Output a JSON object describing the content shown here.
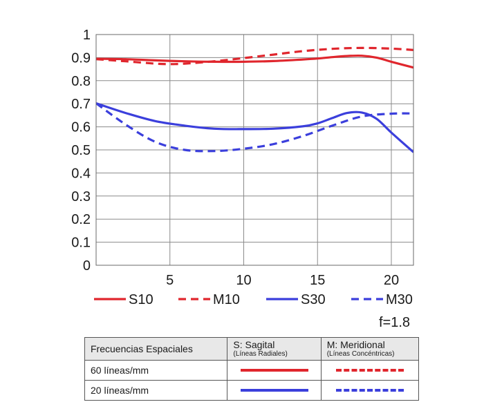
{
  "chart_data": {
    "type": "line",
    "xlabel": "",
    "ylabel": "",
    "xlim": [
      0,
      21.5
    ],
    "ylim": [
      0,
      1
    ],
    "x_ticks": [
      5,
      10,
      15,
      20
    ],
    "y_ticks": [
      "0",
      "0.1",
      "0.2",
      "0.3",
      "0.4",
      "0.5",
      "0.6",
      "0.7",
      "0.8",
      "0.9",
      "1"
    ],
    "grid": true,
    "legend_position": "bottom",
    "series": [
      {
        "name": "S10",
        "color": "#e0262d",
        "style": "solid",
        "x": [
          0,
          2,
          4,
          6,
          8,
          10,
          12,
          14,
          15,
          16,
          17,
          18,
          19,
          20,
          21.5
        ],
        "y": [
          0.895,
          0.893,
          0.888,
          0.884,
          0.882,
          0.882,
          0.885,
          0.892,
          0.896,
          0.902,
          0.907,
          0.908,
          0.9,
          0.882,
          0.857
        ]
      },
      {
        "name": "M10",
        "color": "#e0262d",
        "style": "dashed",
        "x": [
          0,
          2,
          4,
          5,
          6,
          8,
          10,
          12,
          14,
          16,
          18,
          20,
          21.5
        ],
        "y": [
          0.893,
          0.884,
          0.874,
          0.872,
          0.874,
          0.884,
          0.898,
          0.913,
          0.928,
          0.938,
          0.942,
          0.939,
          0.933
        ]
      },
      {
        "name": "S30",
        "color": "#3b3fdc",
        "style": "solid",
        "x": [
          0,
          2,
          4,
          6,
          8,
          10,
          12,
          14,
          15,
          16,
          17,
          18,
          19,
          20,
          21.5
        ],
        "y": [
          0.702,
          0.66,
          0.625,
          0.605,
          0.592,
          0.59,
          0.592,
          0.602,
          0.615,
          0.638,
          0.66,
          0.662,
          0.635,
          0.575,
          0.49
        ]
      },
      {
        "name": "M30",
        "color": "#3b3fdc",
        "style": "dashed",
        "x": [
          0,
          2,
          4,
          6,
          8,
          10,
          12,
          14,
          16,
          18,
          20,
          21.5
        ],
        "y": [
          0.702,
          0.61,
          0.535,
          0.5,
          0.495,
          0.505,
          0.525,
          0.56,
          0.605,
          0.645,
          0.657,
          0.658
        ]
      }
    ]
  },
  "aperture_label": "f=1.8",
  "legend_table": {
    "header": {
      "col1": "Frecuencias Espaciales",
      "col2_main": "S: Sagital",
      "col2_sub": "(Líneas Radiales)",
      "col3_main": "M: Meridional",
      "col3_sub": "(Líneas Concéntricas)"
    },
    "rows": [
      {
        "label": "60 líneas/mm"
      },
      {
        "label": "20 líneas/mm"
      }
    ]
  }
}
